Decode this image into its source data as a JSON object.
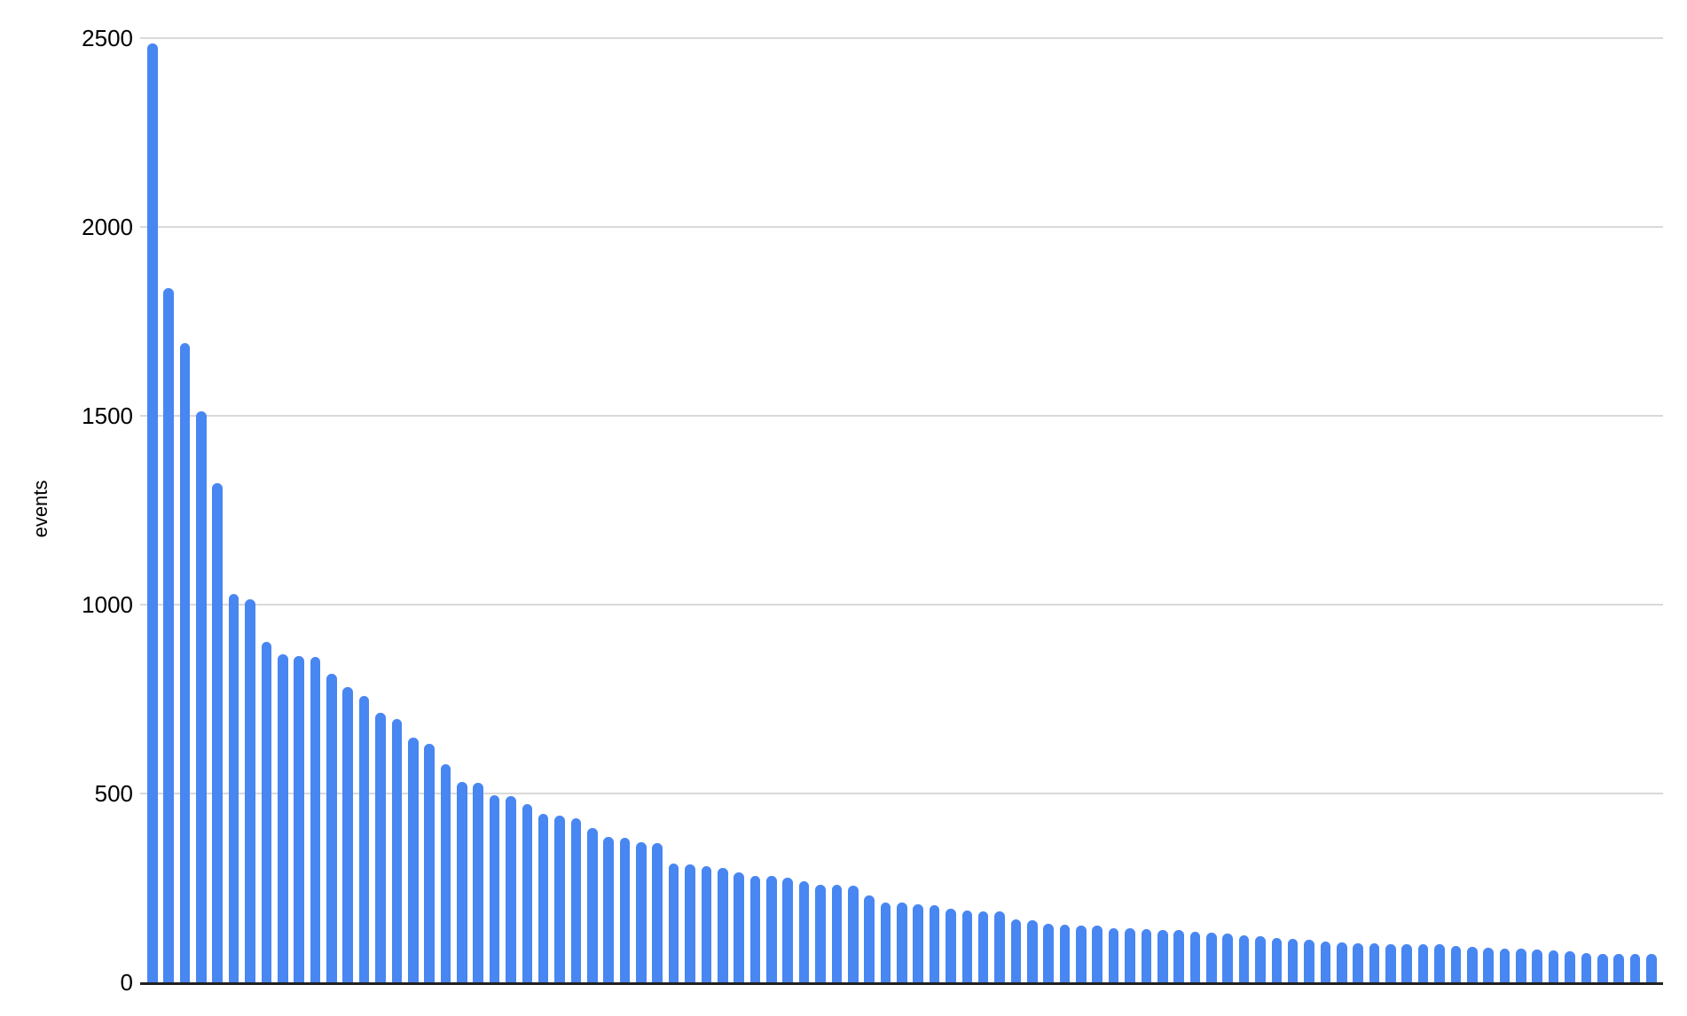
{
  "chart_data": {
    "type": "bar",
    "ylabel": "events",
    "yticks": [
      0,
      500,
      1000,
      1500,
      2000,
      2500
    ],
    "ylim": [
      0,
      2500
    ],
    "grid": "horizontal",
    "legend": "none",
    "x_tick_labels_visible": false,
    "bar_style": "rounded-top",
    "values": [
      2485,
      1838,
      1692,
      1510,
      1322,
      1027,
      1013,
      902,
      867,
      863,
      861,
      816,
      781,
      758,
      713,
      697,
      648,
      630,
      578,
      531,
      527,
      496,
      492,
      472,
      445,
      441,
      435,
      408,
      384,
      382,
      371,
      368,
      315,
      311,
      307,
      302,
      292,
      282,
      281,
      276,
      268,
      257,
      257,
      255,
      231,
      212,
      212,
      206,
      204,
      194,
      190,
      188,
      188,
      167,
      165,
      154,
      153,
      150,
      150,
      143,
      143,
      141,
      139,
      139,
      133,
      131,
      129,
      125,
      123,
      118,
      115,
      112,
      107,
      106,
      104,
      104,
      102,
      102,
      102,
      100,
      96,
      94,
      92,
      90,
      89,
      86,
      84,
      81,
      78,
      76,
      76,
      75,
      74
    ],
    "colors": {
      "bar": "#4886F2",
      "gridline": "#D9D9D9",
      "axis": "#212121",
      "text": "#000000",
      "background": "#FFFFFF"
    }
  }
}
